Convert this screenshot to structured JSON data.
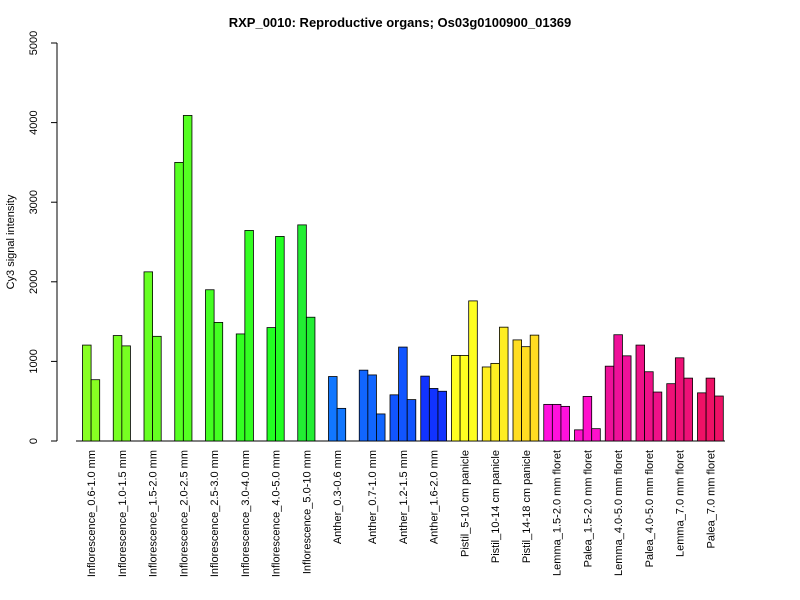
{
  "chart_data": {
    "type": "bar",
    "title": "RXP_0010: Reproductive organs; Os03g0100900_01369",
    "ylabel": "Cy3 signal intensity",
    "xlabel": "",
    "ylim": [
      0,
      5000
    ],
    "yticks": [
      0,
      1000,
      2000,
      3000,
      4000,
      5000
    ],
    "grid": false,
    "groups": [
      {
        "label": "Inflorescence_0.6-1.0 mm",
        "values": [
          1205,
          770
        ],
        "colors": [
          "#88ff22",
          "#88ff22"
        ]
      },
      {
        "label": "Inflorescence_1.0-1.5 mm",
        "values": [
          1325,
          1195
        ],
        "colors": [
          "#77ff22",
          "#77ff22"
        ]
      },
      {
        "label": "Inflorescence_1.5-2.0 mm",
        "values": [
          2125,
          1315
        ],
        "colors": [
          "#66ff22",
          "#66ff22"
        ]
      },
      {
        "label": "Inflorescence_2.0-2.5 mm",
        "values": [
          3500,
          4090
        ],
        "colors": [
          "#55ff22",
          "#55ff22"
        ]
      },
      {
        "label": "Inflorescence_2.5-3.0 mm",
        "values": [
          1900,
          1490
        ],
        "colors": [
          "#44ff22",
          "#44ff22"
        ]
      },
      {
        "label": "Inflorescence_3.0-4.0 mm",
        "values": [
          1345,
          2645
        ],
        "colors": [
          "#33ff22",
          "#33ff22"
        ]
      },
      {
        "label": "Inflorescence_4.0-5.0 mm",
        "values": [
          1425,
          2570
        ],
        "colors": [
          "#22ff22",
          "#22ff22"
        ]
      },
      {
        "label": "Inflorescence_5.0-10 mm",
        "values": [
          2715,
          1555
        ],
        "colors": [
          "#22ee33",
          "#22ee33"
        ]
      },
      {
        "label": "Anther_0.3-0.6 mm",
        "values": [
          810,
          410
        ],
        "colors": [
          "#1177ff",
          "#1177ff"
        ]
      },
      {
        "label": "Anther_0.7-1.0 mm",
        "values": [
          890,
          830,
          340
        ],
        "colors": [
          "#1166ff",
          "#1166ff",
          "#1166ff"
        ]
      },
      {
        "label": "Anther_1.2-1.5 mm",
        "values": [
          580,
          1180,
          520
        ],
        "colors": [
          "#1155ff",
          "#1155ff",
          "#1155ff"
        ]
      },
      {
        "label": "Anther_1.6-2.0 mm",
        "values": [
          815,
          660,
          625
        ],
        "colors": [
          "#1133ff",
          "#1133ff",
          "#1133ff"
        ]
      },
      {
        "label": "Pistil_5-10 cm panicle",
        "values": [
          1075,
          1075,
          1760
        ],
        "colors": [
          "#ffff22",
          "#ffff22",
          "#ffff22"
        ]
      },
      {
        "label": "Pistil_10-14 cm panicle",
        "values": [
          930,
          975,
          1430
        ],
        "colors": [
          "#ffee22",
          "#ffee22",
          "#ffee22"
        ]
      },
      {
        "label": "Pistil_14-18 cm panicle",
        "values": [
          1270,
          1185,
          1330
        ],
        "colors": [
          "#ffdd22",
          "#ffdd22",
          "#ffdd22"
        ]
      },
      {
        "label": "Lemma_1.5-2.0 mm floret",
        "values": [
          460,
          460,
          435
        ],
        "colors": [
          "#ff11dd",
          "#ff11dd",
          "#ff11dd"
        ]
      },
      {
        "label": "Palea_1.5-2.0 mm floret",
        "values": [
          140,
          560,
          155
        ],
        "colors": [
          "#ff11cc",
          "#ff11cc",
          "#ff11cc"
        ]
      },
      {
        "label": "Lemma_4.0-5.0 mm floret",
        "values": [
          940,
          1335,
          1070
        ],
        "colors": [
          "#ee1199",
          "#ee1199",
          "#ee1199"
        ]
      },
      {
        "label": "Palea_4.0-5.0 mm floret",
        "values": [
          1205,
          870,
          615
        ],
        "colors": [
          "#ee1188",
          "#ee1188",
          "#ee1188"
        ]
      },
      {
        "label": "Lemma_7.0 mm floret",
        "values": [
          720,
          1045,
          790
        ],
        "colors": [
          "#ee1177",
          "#ee1177",
          "#ee1177"
        ]
      },
      {
        "label": "Palea_7.0 mm floret",
        "values": [
          605,
          790,
          565
        ],
        "colors": [
          "#ee1166",
          "#ee1166",
          "#ee1166"
        ]
      }
    ]
  }
}
